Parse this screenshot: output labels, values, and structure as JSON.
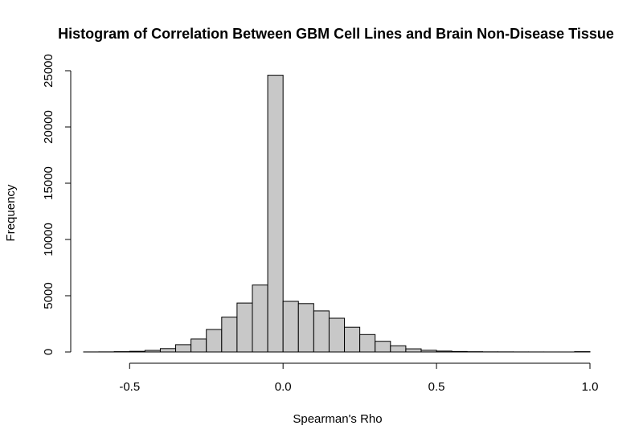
{
  "chart_data": {
    "type": "bar",
    "subtype": "histogram",
    "title": "Histogram of Correlation Between GBM Cell Lines and Brain Non-Disease Tissue",
    "xlabel": "Spearman's Rho",
    "ylabel": "Frequency",
    "xlim": [
      -0.65,
      1.0
    ],
    "ylim": [
      0,
      25000
    ],
    "x_ticks": [
      -0.5,
      0.0,
      0.5,
      1.0
    ],
    "x_tick_labels": [
      "-0.5",
      "0.0",
      "0.5",
      "1.0"
    ],
    "y_ticks": [
      0,
      5000,
      10000,
      15000,
      20000,
      25000
    ],
    "y_tick_labels": [
      "0",
      "5000",
      "10000",
      "15000",
      "20000",
      "25000"
    ],
    "bin_width": 0.05,
    "bins": [
      {
        "x0": -0.65,
        "x1": -0.6,
        "count": 5
      },
      {
        "x0": -0.6,
        "x1": -0.55,
        "count": 10
      },
      {
        "x0": -0.55,
        "x1": -0.5,
        "count": 30
      },
      {
        "x0": -0.5,
        "x1": -0.45,
        "count": 60
      },
      {
        "x0": -0.45,
        "x1": -0.4,
        "count": 140
      },
      {
        "x0": -0.4,
        "x1": -0.35,
        "count": 300
      },
      {
        "x0": -0.35,
        "x1": -0.3,
        "count": 650
      },
      {
        "x0": -0.3,
        "x1": -0.25,
        "count": 1150
      },
      {
        "x0": -0.25,
        "x1": -0.2,
        "count": 2000
      },
      {
        "x0": -0.2,
        "x1": -0.15,
        "count": 3100
      },
      {
        "x0": -0.15,
        "x1": -0.1,
        "count": 4350
      },
      {
        "x0": -0.1,
        "x1": -0.05,
        "count": 5950
      },
      {
        "x0": -0.05,
        "x1": 0.0,
        "count": 24600
      },
      {
        "x0": 0.0,
        "x1": 0.05,
        "count": 4500
      },
      {
        "x0": 0.05,
        "x1": 0.1,
        "count": 4300
      },
      {
        "x0": 0.1,
        "x1": 0.15,
        "count": 3650
      },
      {
        "x0": 0.15,
        "x1": 0.2,
        "count": 3000
      },
      {
        "x0": 0.2,
        "x1": 0.25,
        "count": 2200
      },
      {
        "x0": 0.25,
        "x1": 0.3,
        "count": 1550
      },
      {
        "x0": 0.3,
        "x1": 0.35,
        "count": 950
      },
      {
        "x0": 0.35,
        "x1": 0.4,
        "count": 550
      },
      {
        "x0": 0.4,
        "x1": 0.45,
        "count": 280
      },
      {
        "x0": 0.45,
        "x1": 0.5,
        "count": 150
      },
      {
        "x0": 0.5,
        "x1": 0.55,
        "count": 80
      },
      {
        "x0": 0.55,
        "x1": 0.6,
        "count": 45
      },
      {
        "x0": 0.6,
        "x1": 0.65,
        "count": 25
      },
      {
        "x0": 0.65,
        "x1": 0.7,
        "count": 12
      },
      {
        "x0": 0.7,
        "x1": 0.75,
        "count": 10
      },
      {
        "x0": 0.75,
        "x1": 0.8,
        "count": 6
      },
      {
        "x0": 0.8,
        "x1": 0.85,
        "count": 4
      },
      {
        "x0": 0.85,
        "x1": 0.9,
        "count": 3
      },
      {
        "x0": 0.9,
        "x1": 0.95,
        "count": 2
      },
      {
        "x0": 0.95,
        "x1": 1.0,
        "count": 30
      }
    ],
    "grid": false,
    "bar_fill": "#c8c8c8",
    "bar_stroke": "#000000"
  }
}
